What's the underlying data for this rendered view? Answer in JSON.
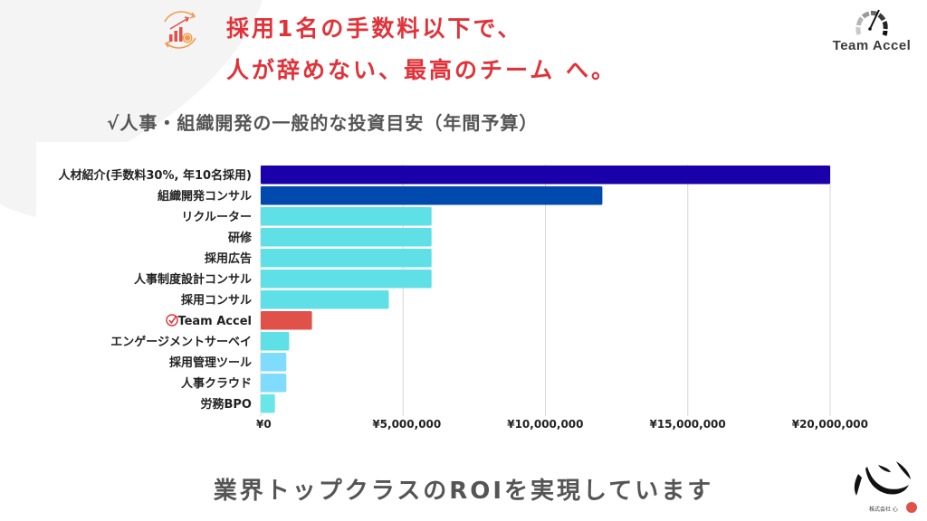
{
  "header": {
    "headline_line1": "採用1名の手数料以下で、",
    "headline_line2": "人が辞めない、最高のチーム へ。",
    "icon": "growth-chart-coin-icon",
    "accent_color": "#e23239"
  },
  "logo": {
    "name": "Team Accel",
    "icon": "speedometer-icon"
  },
  "subtitle": "√人事・組織開発の一般的な投資目安（年間予算）",
  "footer": {
    "tagline": "業界トップクラスのROIを実現しています"
  },
  "brand": {
    "name": "株式会社 心",
    "mark": "心"
  },
  "chart_data": {
    "type": "bar",
    "orientation": "horizontal",
    "title": "人事・組織開発の一般的な投資目安（年間予算）",
    "xlabel": "",
    "ylabel": "",
    "xlim": [
      0,
      20000000
    ],
    "grid": true,
    "x_ticks": [
      0,
      5000000,
      10000000,
      15000000,
      20000000
    ],
    "x_tick_labels": [
      "¥0",
      "¥5,000,000",
      "¥10,000,000",
      "¥15,000,000",
      "¥20,000,000"
    ],
    "categories": [
      "人材紹介(手数料30%, 年10名採用)",
      "組織開発コンサル",
      "リクルーター",
      "研修",
      "採用広告",
      "人事制度設計コンサル",
      "採用コンサル",
      "Team Accel",
      "エンゲージメントサーベイ",
      "採用管理ツール",
      "人事クラウド",
      "労務BPO"
    ],
    "values": [
      20000000,
      12000000,
      6000000,
      6000000,
      6000000,
      6000000,
      4500000,
      1800000,
      1000000,
      900000,
      900000,
      500000
    ],
    "colors": [
      "#1a00a8",
      "#0049ad",
      "#5ee0e6",
      "#5ee0e6",
      "#5ee0e6",
      "#5ee0e6",
      "#5ee0e6",
      "#e0514a",
      "#5ee0e6",
      "#7fdcff",
      "#7fdcff",
      "#6ae6e8"
    ],
    "highlight": {
      "category": "Team Accel",
      "icon": "check-circle-icon",
      "color": "#e23239"
    }
  }
}
